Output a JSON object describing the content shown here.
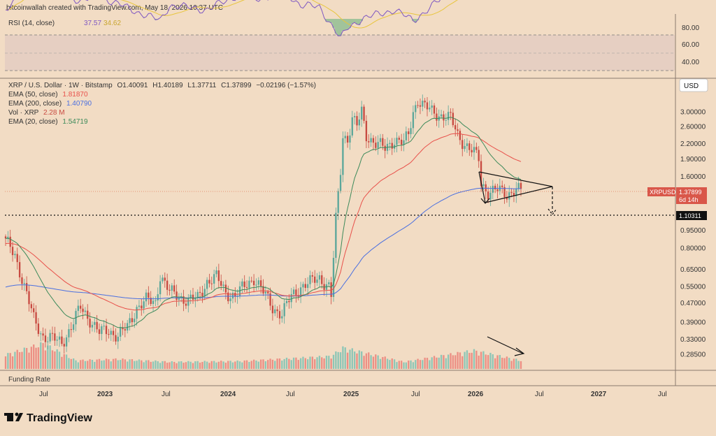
{
  "header": {
    "credit": "bitcoinwallah created with TradingView.com, May 18, 2026 10:37 UTC"
  },
  "rsi_panel": {
    "label": "RSI (14, close)",
    "rsi_value": "37.57",
    "ma_value": "34.62",
    "ticks": [
      "80.00",
      "60.00",
      "40.00"
    ]
  },
  "legend": {
    "symbol_line": "XRP / U.S. Dollar · 1W · Bitstamp",
    "ohlc": {
      "o": "O1.40091",
      "h": "H1.40189",
      "l": "L1.37711",
      "c": "C1.37899",
      "chg": "−0.02196 (−1.57%)"
    },
    "ema50": {
      "label": "EMA (50, close)",
      "value": "1.81870"
    },
    "ema200": {
      "label": "EMA (200, close)",
      "value": "1.40790"
    },
    "vol": {
      "label": "Vol · XRP",
      "value": "2.28 M"
    },
    "ema20": {
      "label": "EMA (20, close)",
      "value": "1.54719"
    }
  },
  "currency_button": "USD",
  "price_tag": {
    "symbol": "XRPUSD",
    "price": "1.37899",
    "countdown": "6d 14h"
  },
  "level_tag": "1.10311",
  "bottom_panel_label": "Funding Rate",
  "x_ticks": [
    "Jul",
    "2023",
    "Jul",
    "2024",
    "Jul",
    "2025",
    "Jul",
    "2026",
    "Jul",
    "2027",
    "Jul"
  ],
  "footer_logo": "TradingView",
  "colors": {
    "background": "#f2dcc4",
    "up": "#5ba79a",
    "down": "#c84a41",
    "ema20": "#3c8a5a",
    "ema50": "#e8504a",
    "ema200": "#4a6fe0",
    "rsi": "#7e57c2",
    "rsi_ma": "#e8c53c"
  },
  "chart_data": {
    "type": "candlestick",
    "scale": "log",
    "y_ticks": [
      3.0,
      2.6,
      2.2,
      1.9,
      1.6,
      1.1031,
      0.95,
      0.8,
      0.65,
      0.55,
      0.47,
      0.39,
      0.33,
      0.285
    ],
    "ylim": [
      0.26,
      4.0
    ],
    "close_anchors": [
      [
        0,
        0.85
      ],
      [
        4,
        0.75
      ],
      [
        8,
        0.55
      ],
      [
        12,
        0.4
      ],
      [
        16,
        0.34
      ],
      [
        20,
        0.33
      ],
      [
        24,
        0.32
      ],
      [
        28,
        0.37
      ],
      [
        32,
        0.45
      ],
      [
        36,
        0.4
      ],
      [
        40,
        0.35
      ],
      [
        44,
        0.36
      ],
      [
        48,
        0.34
      ],
      [
        52,
        0.37
      ],
      [
        56,
        0.45
      ],
      [
        60,
        0.48
      ],
      [
        64,
        0.47
      ],
      [
        66,
        0.62
      ],
      [
        70,
        0.52
      ],
      [
        74,
        0.5
      ],
      [
        78,
        0.48
      ],
      [
        82,
        0.49
      ],
      [
        86,
        0.58
      ],
      [
        90,
        0.6
      ],
      [
        94,
        0.52
      ],
      [
        98,
        0.5
      ],
      [
        102,
        0.55
      ],
      [
        106,
        0.6
      ],
      [
        110,
        0.52
      ],
      [
        114,
        0.45
      ],
      [
        118,
        0.42
      ],
      [
        122,
        0.5
      ],
      [
        126,
        0.55
      ],
      [
        130,
        0.57
      ],
      [
        134,
        0.6
      ],
      [
        138,
        0.55
      ],
      [
        139,
        0.5
      ],
      [
        141,
        1.05
      ],
      [
        143,
        1.7
      ],
      [
        144,
        2.4
      ],
      [
        146,
        2.3
      ],
      [
        148,
        2.8
      ],
      [
        150,
        2.6
      ],
      [
        152,
        3.0
      ],
      [
        154,
        2.4
      ],
      [
        158,
        2.2
      ],
      [
        162,
        2.1
      ],
      [
        166,
        2.3
      ],
      [
        170,
        2.2
      ],
      [
        172,
        2.4
      ],
      [
        174,
        3.0
      ],
      [
        176,
        3.4
      ],
      [
        178,
        3.2
      ],
      [
        182,
        3.0
      ],
      [
        186,
        2.9
      ],
      [
        190,
        2.8
      ],
      [
        193,
        2.4
      ],
      [
        196,
        2.2
      ],
      [
        200,
        2.0
      ],
      [
        202,
        1.9
      ],
      [
        203,
        1.5
      ],
      [
        206,
        1.38
      ],
      [
        210,
        1.4
      ],
      [
        214,
        1.35
      ],
      [
        218,
        1.42
      ],
      [
        220,
        1.38
      ]
    ],
    "volume_anchors": [
      [
        0,
        1.0
      ],
      [
        16,
        1.8
      ],
      [
        30,
        0.6
      ],
      [
        48,
        0.7
      ],
      [
        70,
        0.5
      ],
      [
        100,
        0.55
      ],
      [
        139,
        0.9
      ],
      [
        144,
        1.5
      ],
      [
        170,
        0.5
      ],
      [
        200,
        1.3
      ],
      [
        220,
        0.6
      ]
    ],
    "rsi_anchors": [
      [
        0,
        60
      ],
      [
        8,
        35
      ],
      [
        16,
        28
      ],
      [
        24,
        42
      ],
      [
        32,
        50
      ],
      [
        40,
        45
      ],
      [
        52,
        58
      ],
      [
        66,
        72
      ],
      [
        70,
        55
      ],
      [
        86,
        60
      ],
      [
        98,
        45
      ],
      [
        110,
        48
      ],
      [
        118,
        37
      ],
      [
        126,
        55
      ],
      [
        134,
        57
      ],
      [
        140,
        80
      ],
      [
        143,
        92
      ],
      [
        146,
        80
      ],
      [
        152,
        70
      ],
      [
        166,
        60
      ],
      [
        174,
        72
      ],
      [
        186,
        48
      ],
      [
        196,
        38
      ],
      [
        206,
        32
      ],
      [
        214,
        34
      ],
      [
        220,
        37
      ]
    ],
    "annotations": [
      "symmetrical triangle",
      "breakdown target at support 1.10311",
      "declining volume arrow"
    ]
  }
}
